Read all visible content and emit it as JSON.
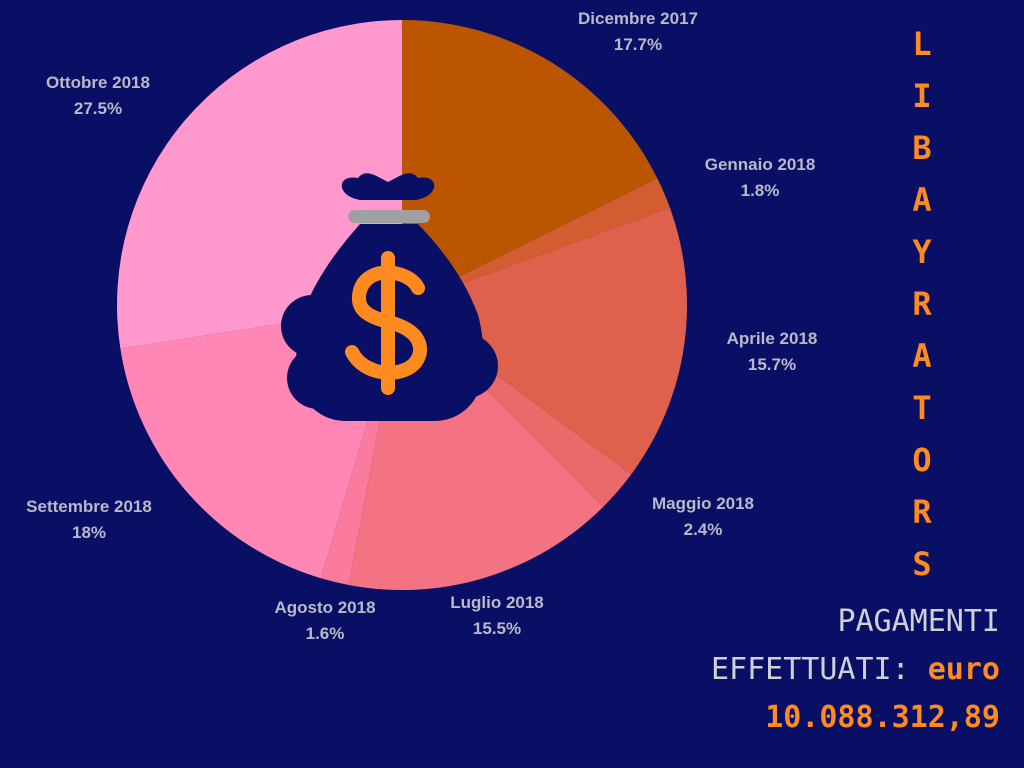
{
  "chart_data": {
    "type": "pie",
    "categories": [
      "Dicembre 2017",
      "Gennaio 2018",
      "Aprile 2018",
      "Maggio 2018",
      "Luglio 2018",
      "Agosto 2018",
      "Settembre 2018",
      "Ottobre 2018"
    ],
    "values": [
      17.7,
      1.8,
      15.7,
      2.4,
      15.5,
      1.6,
      18,
      27.5
    ],
    "value_labels": [
      "17.7%",
      "1.8%",
      "15.7%",
      "2.4%",
      "15.5%",
      "1.6%",
      "18%",
      "27.5%"
    ],
    "colors": [
      "#bb5500",
      "#d25d2f",
      "#e0604e",
      "#ea6a6a",
      "#f47383",
      "#fa7b9d",
      "#ff86b5",
      "#ff98cd"
    ],
    "start_angle_deg": 0,
    "direction": "clockwise"
  },
  "icon": "money-bag-dollar-icon",
  "brand_letters": [
    "L",
    "I",
    "B",
    "A",
    "Y",
    "R",
    "A",
    "T",
    "O",
    "R",
    "S"
  ],
  "payments": {
    "line1": "PAGAMENTI",
    "line2_prefix": "EFFETTUATI:",
    "currency": "euro",
    "amount": "10.088.312,89"
  },
  "colors": {
    "background": "#0a0f66",
    "accent": "#ff8a1f",
    "label_text": "#b9b9c8",
    "icon_fill": "#0a0f66",
    "icon_tie": "#a0a0a0"
  }
}
